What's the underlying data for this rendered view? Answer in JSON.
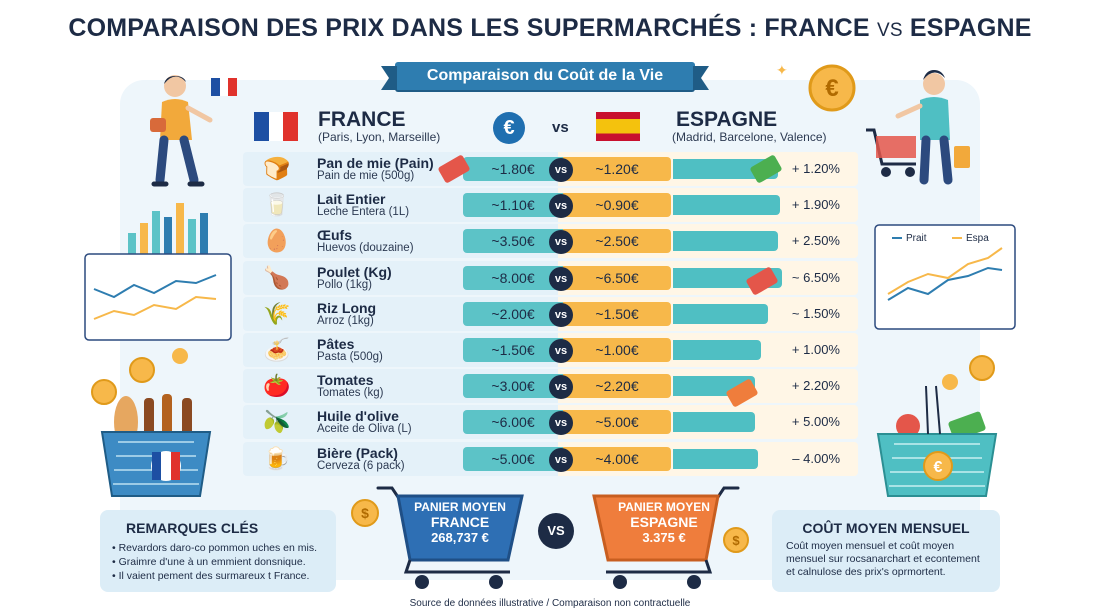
{
  "title": {
    "main_before": "COMPARAISON DES PRIX DANS LES SUPERMARCHÉS : FRANCE ",
    "vs": "VS",
    "main_after": " ESPAGNE"
  },
  "banner": "Comparaison du Coût de la Vie",
  "header": {
    "france": {
      "name": "FRANCE",
      "cities": "(Paris, Lyon, Marseille)"
    },
    "spain": {
      "name": "ESPAGNE",
      "cities": "(Madrid, Barcelone, Valence)"
    },
    "currency_symbol": "€",
    "vs": "vs"
  },
  "rows": [
    {
      "name": "Pan de mie (Pain)",
      "sub": "Pain de mie (500g)",
      "fr": "~1.80€",
      "vs": "vs",
      "es": "~1.20€",
      "diff": "+ 1.20%",
      "icon": "bread-icon",
      "glyph": "🍞",
      "bar": 0.62,
      "tag_left": 200,
      "tag_color": "#e4564a"
    },
    {
      "name": "Lait Entier",
      "sub": "Leche Entera (1L)",
      "fr": "~1.10€",
      "vs": "vs",
      "es": "~0.90€",
      "diff": "+ 1.90%",
      "icon": "milk-icon",
      "glyph": "🥛",
      "bar": 0.63
    },
    {
      "name": "Œufs",
      "sub": "Huevos (douzaine)",
      "fr": "~3.50€",
      "vs": "vs",
      "es": "~2.50€",
      "diff": "+ 2.50%",
      "icon": "eggs-icon",
      "glyph": "🥚",
      "bar": 0.62
    },
    {
      "name": "Poulet (Kg)",
      "sub": "Pollo (1kg)",
      "fr": "~8.00€",
      "vs": "vs",
      "es": "~6.50€",
      "diff": "~ 6.50%",
      "icon": "chicken-icon",
      "glyph": "🍗",
      "bar": 0.64
    },
    {
      "name": "Riz Long",
      "sub": "Arroz (1kg)",
      "fr": "~2.00€",
      "vs": "vs",
      "es": "~1.50€",
      "diff": "~ 1.50%",
      "icon": "rice-bag-icon",
      "glyph": "🌾",
      "bar": 0.56
    },
    {
      "name": "Pâtes",
      "sub": "Pasta (500g)",
      "fr": "~1.50€",
      "vs": "vs",
      "es": "~1.00€",
      "diff": "+ 1.00%",
      "icon": "pasta-icon",
      "glyph": "🍝",
      "bar": 0.52
    },
    {
      "name": "Tomates",
      "sub": "Tomates (kg)",
      "fr": "~3.00€",
      "vs": "vs",
      "es": "~2.20€",
      "diff": "+ 2.20%",
      "icon": "tomato-icon",
      "glyph": "🍅",
      "bar": 0.48
    },
    {
      "name": "Huile d'olive",
      "sub": "Aceite de Oliva (L)",
      "fr": "~6.00€",
      "vs": "vs",
      "es": "~5.00€",
      "diff": "+ 5.00%",
      "icon": "olive-oil-icon",
      "glyph": "🫒",
      "bar": 0.48
    },
    {
      "name": "Bière (Pack)",
      "sub": "Cerveza (6 pack)",
      "fr": "~5.00€",
      "vs": "vs",
      "es": "~4.00€",
      "diff": "– 4.00%",
      "icon": "beer-pack-icon",
      "glyph": "🍺",
      "bar": 0.5
    }
  ],
  "notes": {
    "title": "REMARQUES CLÉS",
    "items": [
      "Revardors daro-co pommon uches en mis.",
      "Graimre d'une à un emmient donsnique.",
      "Il vaient pement des surmareux t France."
    ]
  },
  "basket_fr": {
    "l1": "PANIER MOYEN",
    "l2": "FRANCE",
    "l3": "268,737 €"
  },
  "basket_es": {
    "l1": "PANIER MOYEN",
    "l2": "ESPAGNE",
    "l3": "3.375 €"
  },
  "center_vs": "VS",
  "monthly": {
    "title": "COÛT MOYEN MENSUEL",
    "text": "Coût moyen mensuel et coût moyen mensuel sur rocsanarchart et econtement et calnulose des prix's oprmortent."
  },
  "legend": {
    "series_a": "Prait",
    "series_b": "Espa"
  },
  "colors": {
    "teal": "#5cc3c7",
    "orange": "#f7b84a",
    "navy": "#1d2b45",
    "blue": "#2e7db0"
  },
  "source": "Source de données illustrative / Comparaison non contractuelle"
}
